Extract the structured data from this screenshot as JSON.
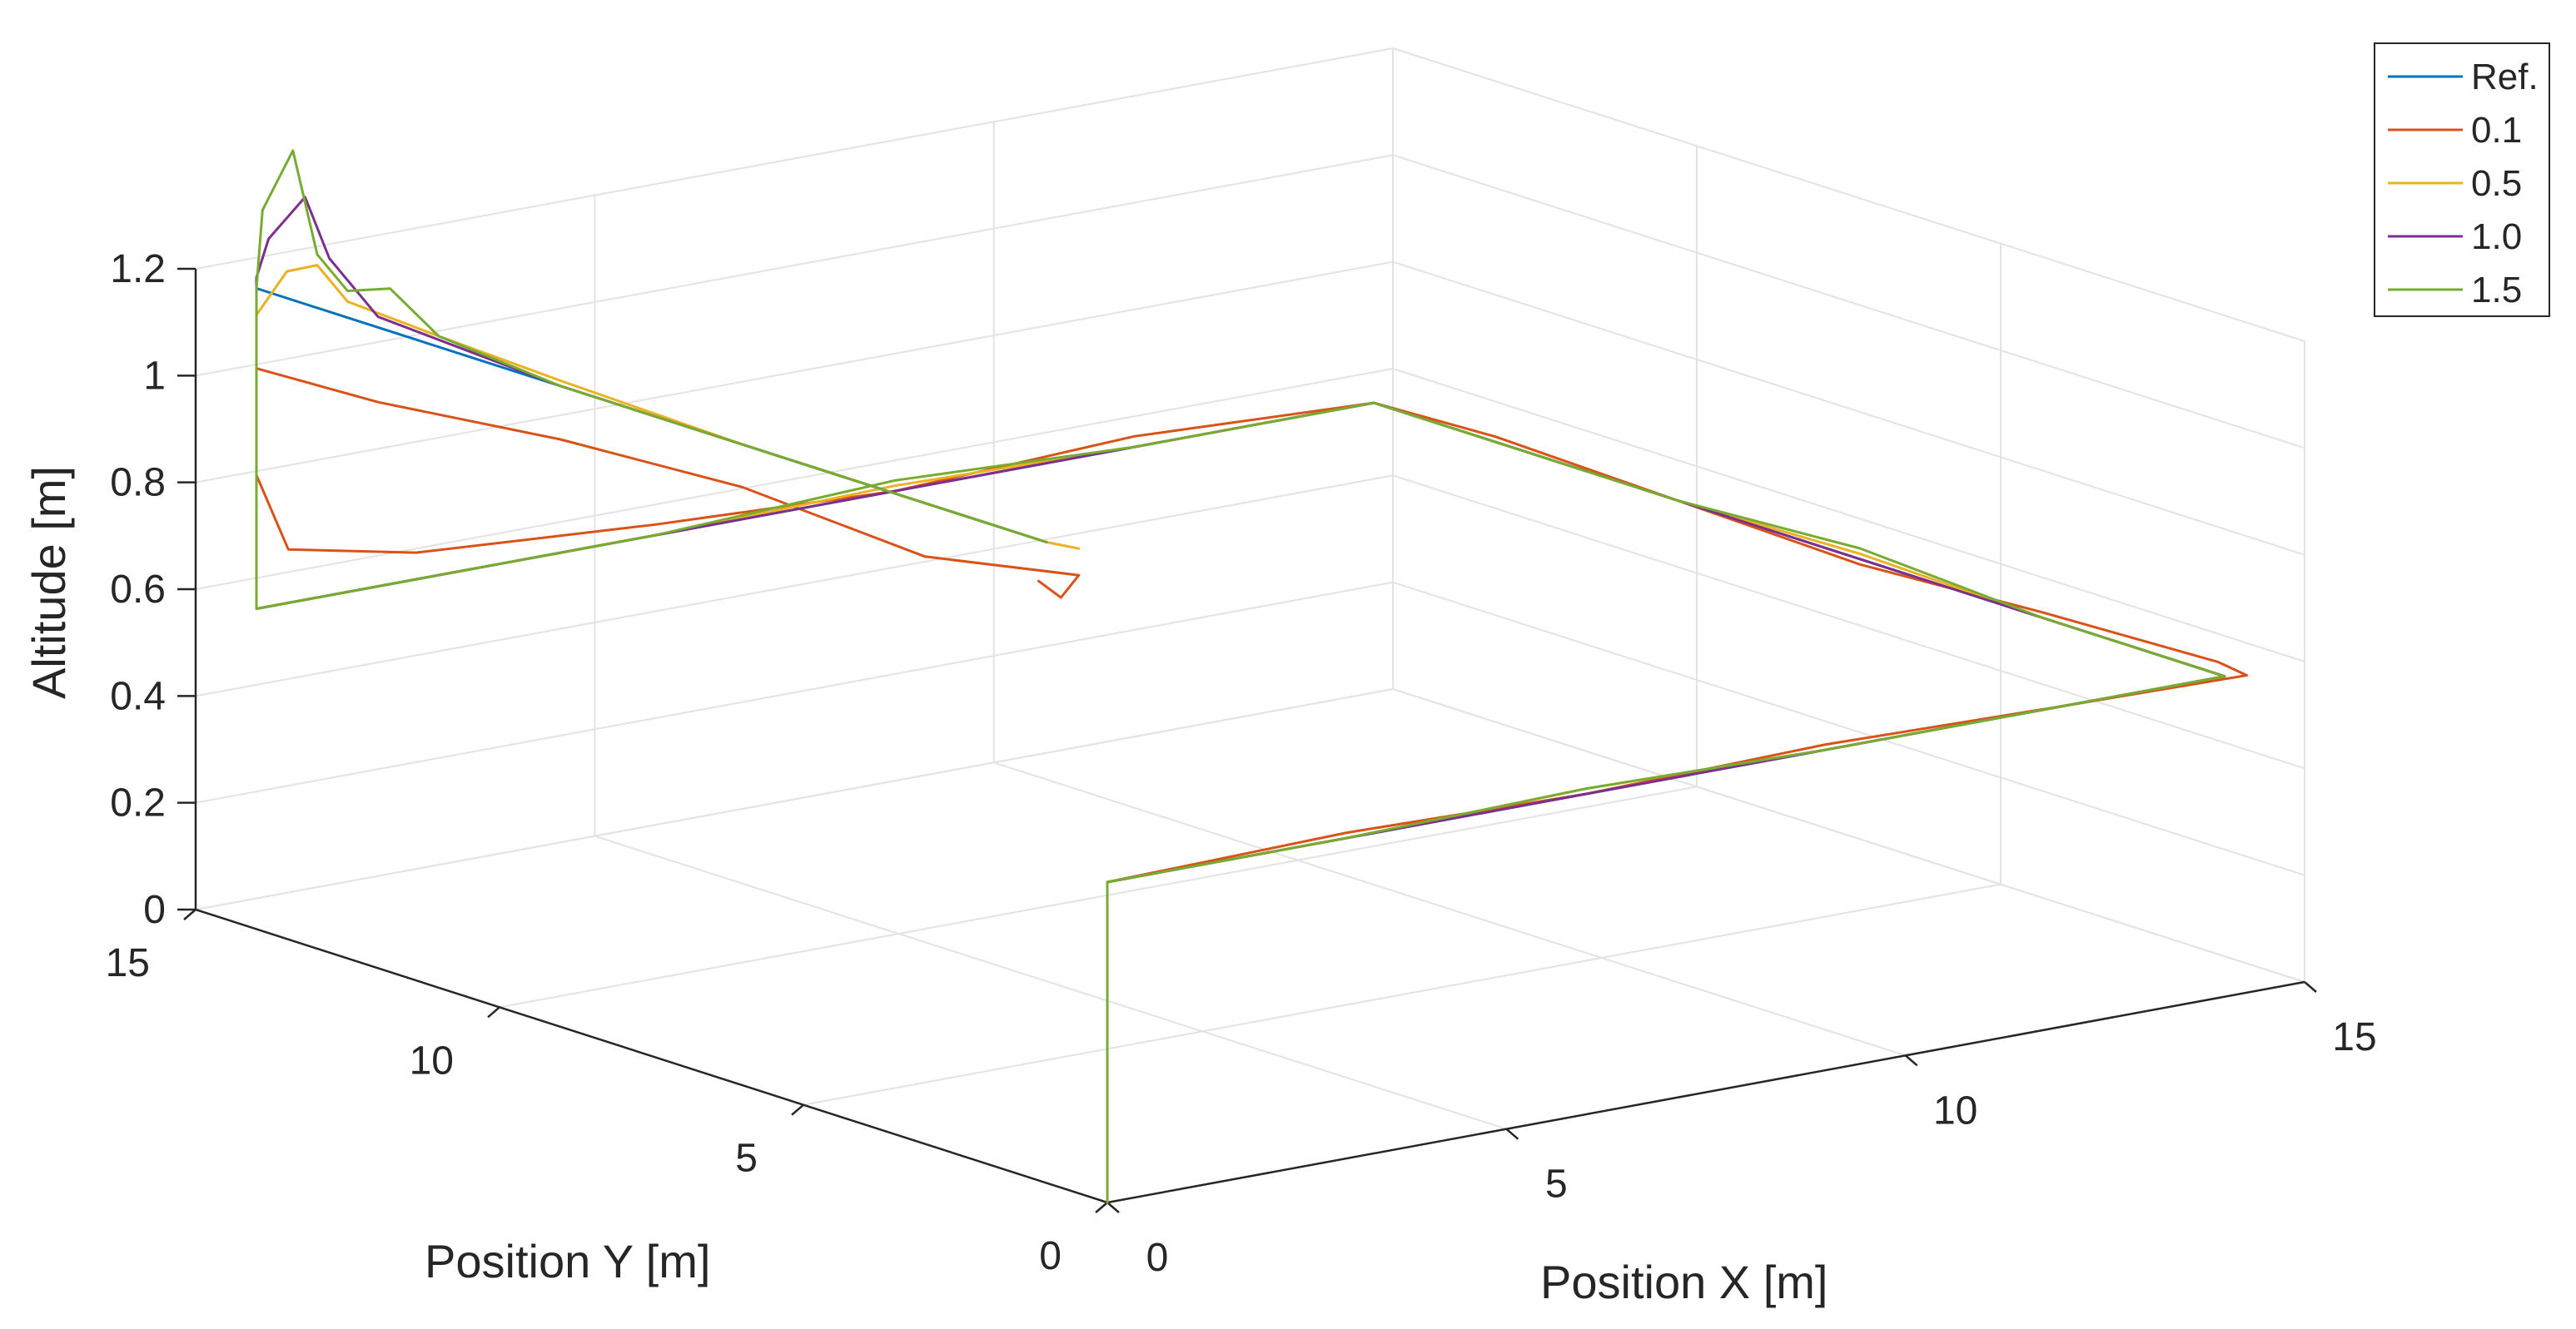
{
  "chart_data": {
    "type": "line",
    "projection": "3d",
    "title": "",
    "xlabel": "Position X [m]",
    "ylabel": "Position Y [m]",
    "zlabel": "Altitude [m]",
    "xlim": [
      0,
      15
    ],
    "ylim": [
      0,
      15
    ],
    "zlim": [
      0,
      1.2
    ],
    "xticks": [
      0,
      5,
      10,
      15
    ],
    "yticks": [
      0,
      5,
      10,
      15
    ],
    "zticks": [
      0,
      0.2,
      0.4,
      0.6,
      0.8,
      1.0,
      1.2
    ],
    "xtick_labels": [
      "0",
      "5",
      "10",
      "15"
    ],
    "ytick_labels": [
      "0",
      "5",
      "10",
      "15"
    ],
    "ztick_labels": [
      "0",
      "0.2",
      "0.4",
      "0.6",
      "0.8",
      "1",
      "1.2"
    ],
    "grid": true,
    "legend_position": "top-right",
    "series": [
      {
        "name": "Ref.",
        "color": "#0072bd",
        "points": [
          [
            0,
            0,
            0
          ],
          [
            0,
            0,
            0.6
          ],
          [
            14,
            0,
            0.6
          ],
          [
            14,
            14,
            0.6
          ],
          [
            0,
            14,
            0.6
          ],
          [
            0,
            14,
            1.2
          ],
          [
            0,
            1,
            1.2
          ]
        ]
      },
      {
        "name": "0.1",
        "color": "#d95319",
        "points": [
          [
            0,
            0,
            0
          ],
          [
            0,
            0,
            0.6
          ],
          [
            3,
            0,
            0.61
          ],
          [
            6,
            0,
            0.6
          ],
          [
            9,
            0,
            0.61
          ],
          [
            12,
            0,
            0.6
          ],
          [
            14.2,
            -0.1,
            0.6
          ],
          [
            14.3,
            0.5,
            0.6
          ],
          [
            14,
            3,
            0.61
          ],
          [
            14,
            6,
            0.59
          ],
          [
            14,
            9,
            0.6
          ],
          [
            14,
            12,
            0.61
          ],
          [
            14,
            14,
            0.6
          ],
          [
            11,
            14,
            0.62
          ],
          [
            8,
            14,
            0.6
          ],
          [
            5,
            14,
            0.62
          ],
          [
            2,
            14,
            0.65
          ],
          [
            0.4,
            14,
            0.7
          ],
          [
            0,
            14,
            0.85
          ],
          [
            0,
            14,
            0.95
          ],
          [
            0,
            14,
            1.05
          ],
          [
            0,
            12,
            1.06
          ],
          [
            0,
            9,
            1.1
          ],
          [
            0,
            6,
            1.12
          ],
          [
            0,
            3,
            1.1
          ],
          [
            0.1,
            0.6,
            1.15
          ],
          [
            -0.2,
            0.5,
            1.12
          ],
          [
            -0.1,
            1,
            1.13
          ]
        ]
      },
      {
        "name": "0.5",
        "color": "#edb120",
        "points": [
          [
            0,
            0,
            0
          ],
          [
            0,
            0,
            0.6
          ],
          [
            3,
            0,
            0.6
          ],
          [
            6,
            0,
            0.61
          ],
          [
            9,
            0,
            0.6
          ],
          [
            12,
            0,
            0.6
          ],
          [
            14,
            0,
            0.6
          ],
          [
            14,
            3,
            0.6
          ],
          [
            14,
            6,
            0.61
          ],
          [
            14,
            9,
            0.6
          ],
          [
            14,
            12,
            0.6
          ],
          [
            14,
            14,
            0.6
          ],
          [
            11,
            14,
            0.6
          ],
          [
            8,
            14,
            0.61
          ],
          [
            5,
            14,
            0.6
          ],
          [
            2,
            14,
            0.6
          ],
          [
            0,
            14,
            0.6
          ],
          [
            0,
            14,
            0.9
          ],
          [
            0,
            14,
            1.15
          ],
          [
            0,
            13.5,
            1.25
          ],
          [
            0,
            13,
            1.28
          ],
          [
            0,
            12.5,
            1.23
          ],
          [
            0,
            11,
            1.22
          ],
          [
            0,
            9,
            1.21
          ],
          [
            0,
            6,
            1.2
          ],
          [
            0,
            3,
            1.2
          ],
          [
            0,
            1,
            1.2
          ],
          [
            0.1,
            0.6,
            1.2
          ]
        ]
      },
      {
        "name": "1.0",
        "color": "#7e2f8e",
        "points": [
          [
            0,
            0,
            0
          ],
          [
            0,
            0,
            0.6
          ],
          [
            3,
            0,
            0.6
          ],
          [
            6,
            0,
            0.6
          ],
          [
            9,
            0,
            0.6
          ],
          [
            12,
            0,
            0.6
          ],
          [
            14,
            0,
            0.6
          ],
          [
            14,
            3,
            0.6
          ],
          [
            14,
            6,
            0.6
          ],
          [
            14,
            9,
            0.6
          ],
          [
            14,
            12,
            0.6
          ],
          [
            14,
            14,
            0.6
          ],
          [
            11,
            14,
            0.6
          ],
          [
            8,
            14,
            0.6
          ],
          [
            5,
            14,
            0.6
          ],
          [
            2,
            14,
            0.6
          ],
          [
            0,
            14,
            0.6
          ],
          [
            0,
            14,
            0.9
          ],
          [
            0,
            14,
            1.22
          ],
          [
            0,
            13.8,
            1.3
          ],
          [
            0,
            13.2,
            1.4
          ],
          [
            0,
            12.8,
            1.3
          ],
          [
            0,
            12,
            1.22
          ],
          [
            0,
            9,
            1.2
          ],
          [
            0,
            6,
            1.2
          ],
          [
            0,
            3,
            1.2
          ],
          [
            0,
            1,
            1.2
          ]
        ]
      },
      {
        "name": "1.5",
        "color": "#77ac30",
        "points": [
          [
            0,
            0,
            0
          ],
          [
            0,
            0,
            0.6
          ],
          [
            3,
            0,
            0.6
          ],
          [
            6,
            0,
            0.61
          ],
          [
            9,
            0,
            0.6
          ],
          [
            12,
            0,
            0.6
          ],
          [
            14,
            0,
            0.6
          ],
          [
            14,
            3,
            0.6
          ],
          [
            14,
            6,
            0.62
          ],
          [
            14,
            9,
            0.6
          ],
          [
            14,
            12,
            0.6
          ],
          [
            14,
            14,
            0.6
          ],
          [
            11,
            14,
            0.6
          ],
          [
            8,
            14,
            0.62
          ],
          [
            5,
            14,
            0.6
          ],
          [
            2,
            14,
            0.6
          ],
          [
            0,
            14,
            0.6
          ],
          [
            0,
            14,
            0.9
          ],
          [
            0,
            14,
            1.2
          ],
          [
            0,
            13.9,
            1.35
          ],
          [
            0,
            13.4,
            1.48
          ],
          [
            0,
            13,
            1.3
          ],
          [
            0,
            12.5,
            1.25
          ],
          [
            0,
            11.8,
            1.28
          ],
          [
            0,
            11,
            1.22
          ],
          [
            0,
            9,
            1.2
          ],
          [
            0,
            6,
            1.2
          ],
          [
            0,
            3,
            1.2
          ],
          [
            0,
            1,
            1.2
          ]
        ]
      }
    ]
  }
}
